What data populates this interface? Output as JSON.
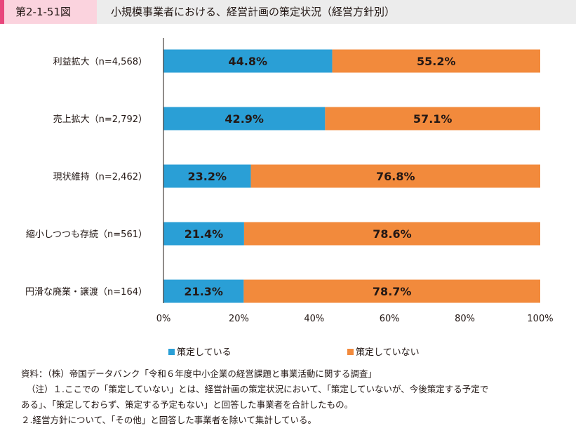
{
  "header": {
    "figure_number": "第2-1-51図",
    "title": "小規模事業者における、経営計画の策定状況（経営方針別）"
  },
  "colors": {
    "planned": "#2a9fd6",
    "not_planned": "#f28a3c",
    "accent": "#e8467c"
  },
  "chart_data": {
    "type": "bar",
    "orientation": "horizontal",
    "stacked": true,
    "categories": [
      "利益拡大（n=4,568）",
      "売上拡大（n=2,792）",
      "現状維持（n=2,462）",
      "縮小しつつも存続（n=561）",
      "円滑な廃業・譲渡（n=164）"
    ],
    "series": [
      {
        "name": "策定している",
        "values": [
          44.8,
          42.9,
          23.2,
          21.4,
          21.3
        ],
        "labels": [
          "44.8%",
          "42.9%",
          "23.2%",
          "21.4%",
          "21.3%"
        ]
      },
      {
        "name": "策定していない",
        "values": [
          55.2,
          57.1,
          76.8,
          78.6,
          78.7
        ],
        "labels": [
          "55.2%",
          "57.1%",
          "76.8%",
          "78.6%",
          "78.7%"
        ]
      }
    ],
    "xlim": [
      0,
      100
    ],
    "xticks": [
      "0%",
      "20%",
      "40%",
      "60%",
      "80%",
      "100%"
    ],
    "legend_position": "bottom"
  },
  "notes": {
    "source": "資料：（株）帝国データバンク「令和６年度中小企業の経営課題と事業活動に関する調査」",
    "note1_a": "（注）１.ここでの「策定していない」とは、経営計画の策定状況において、「策定していないが、今後策定する予定で",
    "note1_b": "ある」、「策定しておらず、策定する予定もない」と回答した事業者を合計したもの。",
    "note2": "２.経営方針について、「その他」と回答した事業者を除いて集計している。"
  }
}
